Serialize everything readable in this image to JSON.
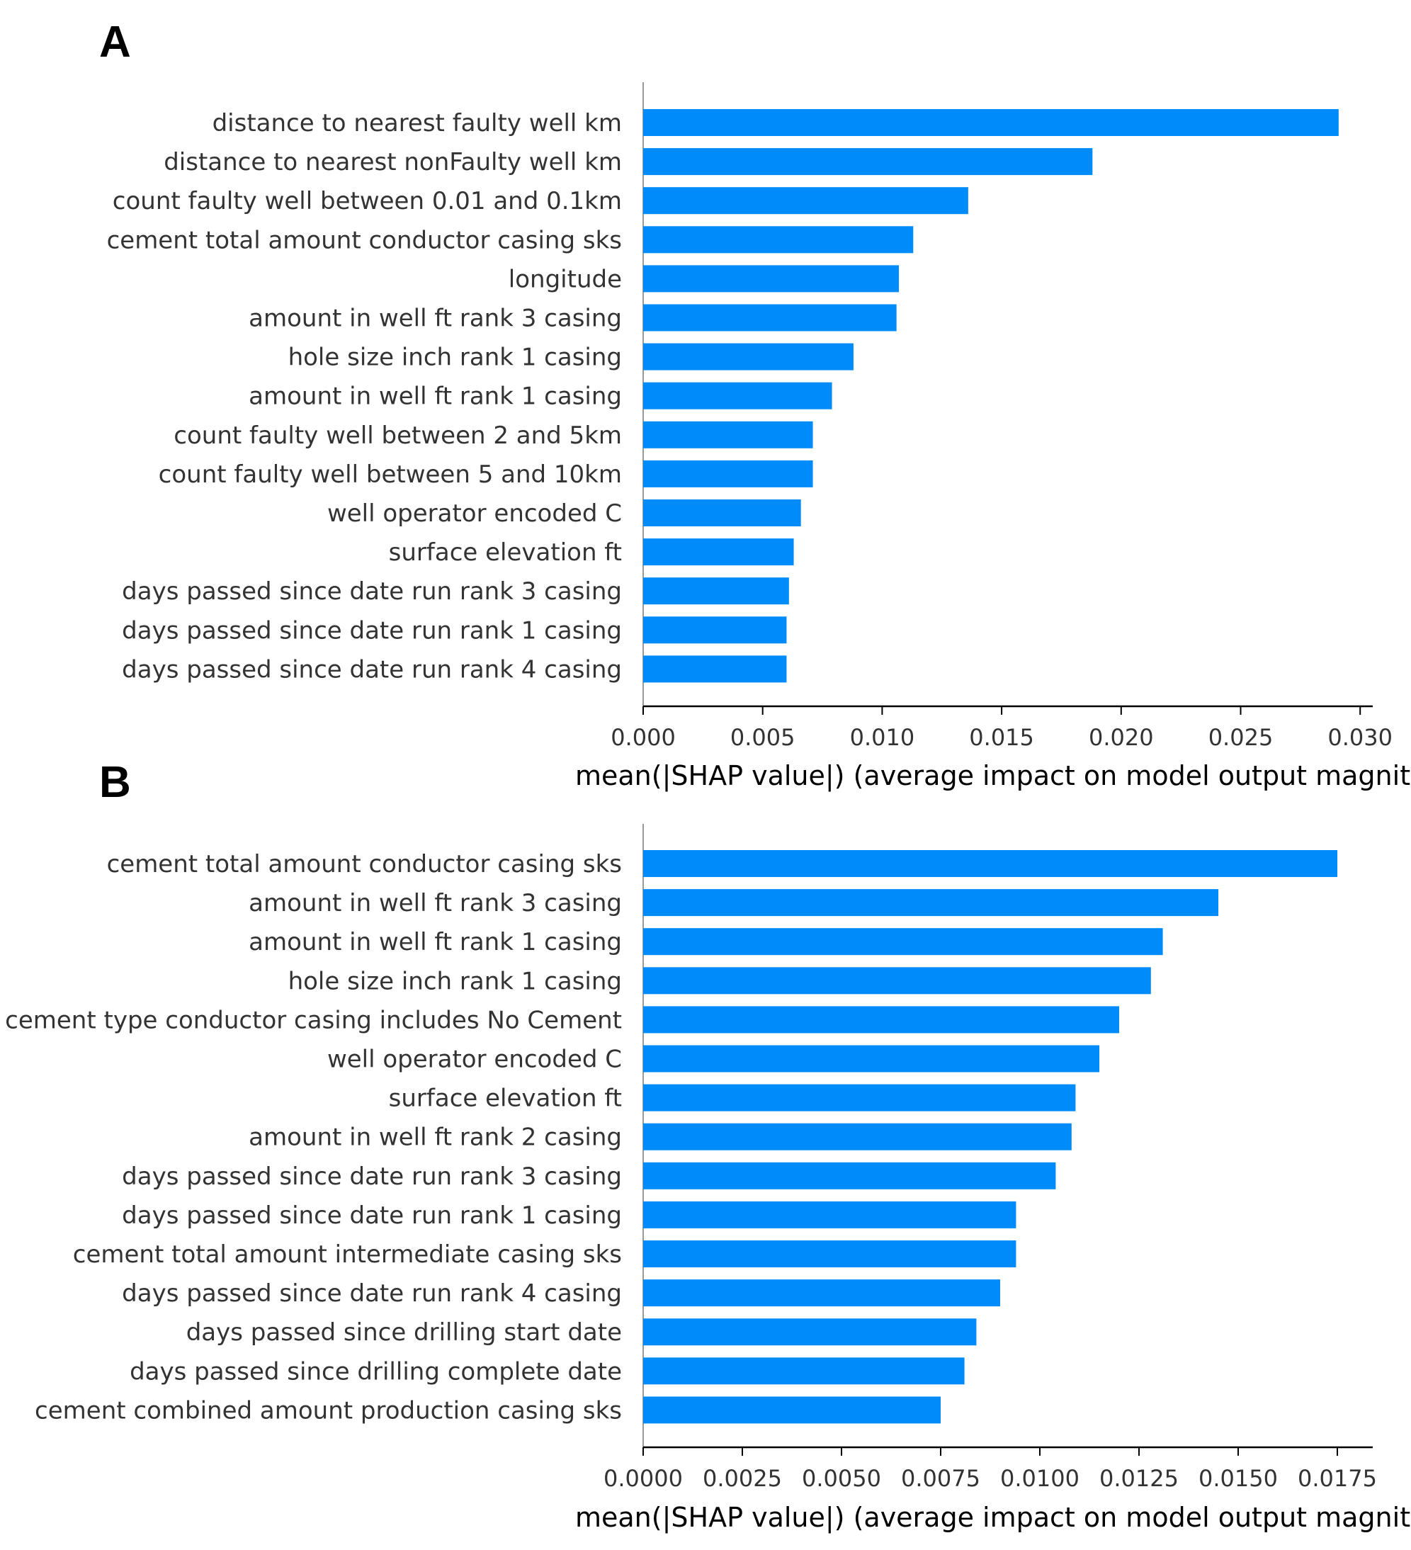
{
  "colors": {
    "bar": "#008bfb",
    "axis": "#000000",
    "y_axis": "#999999",
    "text": "#333333"
  },
  "chart_data": [
    {
      "type": "bar",
      "orientation": "horizontal",
      "panel_label": "A",
      "xlabel": "mean(|SHAP value|) (average impact on model output magnitud",
      "xlim": [
        0,
        0.0305
      ],
      "xticks": [
        "0.000",
        "0.005",
        "0.010",
        "0.015",
        "0.020",
        "0.025",
        "0.030"
      ],
      "categories": [
        "distance to nearest faulty well km",
        "distance to nearest nonFaulty well km",
        "count faulty well between 0.01 and 0.1km",
        "cement total amount conductor casing sks",
        "longitude",
        "amount in well ft rank 3 casing",
        "hole size inch rank 1 casing",
        "amount in well ft rank 1 casing",
        "count faulty well between 2 and 5km",
        "count faulty well between 5 and 10km",
        "well operator encoded C",
        "surface elevation ft",
        "days passed since date run rank 3 casing",
        "days passed since date run rank 1 casing",
        "days passed since date run rank 4 casing"
      ],
      "values": [
        0.0291,
        0.0188,
        0.0136,
        0.0113,
        0.0107,
        0.0106,
        0.0088,
        0.0079,
        0.0071,
        0.0071,
        0.0066,
        0.0063,
        0.0061,
        0.006,
        0.006
      ]
    },
    {
      "type": "bar",
      "orientation": "horizontal",
      "panel_label": "B",
      "xlabel": "mean(|SHAP value|) (average impact on model output magnitud",
      "xlim": [
        0,
        0.0184
      ],
      "xticks": [
        "0.0000",
        "0.0025",
        "0.0050",
        "0.0075",
        "0.0100",
        "0.0125",
        "0.0150",
        "0.0175"
      ],
      "categories": [
        "cement total amount conductor casing sks",
        "amount in well ft rank 3 casing",
        "amount in well ft rank 1 casing",
        "hole size inch rank 1 casing",
        "cement type conductor casing includes No Cement",
        "well operator encoded C",
        "surface elevation ft",
        "amount in well ft rank 2 casing",
        "days passed since date run rank 3 casing",
        "days passed since date run rank 1 casing",
        "cement total amount intermediate casing sks",
        "days passed since date run rank 4 casing",
        "days passed since drilling start date",
        "days passed since drilling complete date",
        "cement combined amount production casing sks"
      ],
      "values": [
        0.0175,
        0.0145,
        0.0131,
        0.0128,
        0.012,
        0.0115,
        0.0109,
        0.0108,
        0.0104,
        0.0094,
        0.0094,
        0.009,
        0.0084,
        0.0081,
        0.0075
      ]
    }
  ]
}
